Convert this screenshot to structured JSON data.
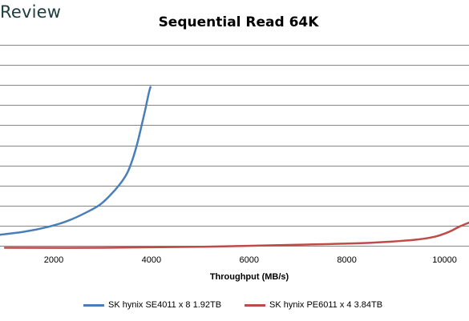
{
  "logo": "Review",
  "chart_data": {
    "type": "line",
    "title": "Sequential Read 64K",
    "xlabel": "Throughput (MB/s)",
    "ylabel": "",
    "xlim": [
      900,
      10500
    ],
    "ylim": [
      0,
      10
    ],
    "x_ticks": [
      2000,
      4000,
      6000,
      8000,
      10000
    ],
    "y_ticks": [
      1,
      2,
      3,
      4,
      5,
      6,
      7,
      8,
      9,
      10
    ],
    "y_tick_labels_visible": false,
    "grid": "horizontal",
    "legend_position": "bottom",
    "series": [
      {
        "name": "SK hynix SE4011 x 8 1.92TB",
        "color": "#4a7ebb",
        "x": [
          900,
          1400,
          1900,
          2300,
          2700,
          2950,
          3150,
          3350,
          3500,
          3600,
          3700,
          3800,
          3880,
          3950,
          3980
        ],
        "y": [
          0.55,
          0.7,
          0.95,
          1.25,
          1.7,
          2.05,
          2.5,
          3.05,
          3.6,
          4.2,
          5.0,
          6.0,
          6.85,
          7.65,
          7.9
        ]
      },
      {
        "name": "SK hynix PE6011 x 4 3.84TB",
        "color": "#be4b48",
        "x": [
          1000,
          3000,
          5000,
          7000,
          8500,
          9400,
          9800,
          10100,
          10300,
          10500
        ],
        "y": [
          -0.1,
          -0.1,
          -0.05,
          0.05,
          0.15,
          0.3,
          0.45,
          0.7,
          0.95,
          1.15
        ]
      }
    ]
  }
}
